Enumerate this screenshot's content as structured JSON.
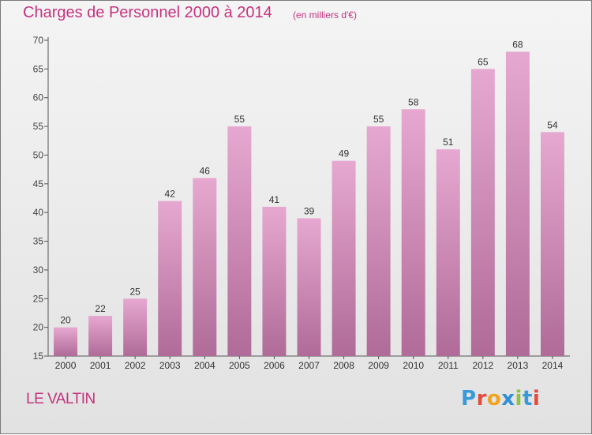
{
  "title": "Charges de Personnel 2000 à 2014",
  "subtitle": "(en milliers d'€)",
  "commune": "LE VALTIN",
  "logo": {
    "letters": [
      "P",
      "r",
      "o",
      "x",
      "i",
      "t",
      "i"
    ],
    "colors": [
      "#3a9ad9",
      "#e24c3c",
      "#f0a31e",
      "#2f8fd6",
      "#8cc63e",
      "#3a9ad9",
      "#e24c3c"
    ]
  },
  "colors": {
    "accent": "#c4337f",
    "bar_top": "#e6a8d0",
    "bar_bottom": "#b06b98",
    "axis": "#555555"
  },
  "chart_data": {
    "type": "bar",
    "categories": [
      "2000",
      "2001",
      "2002",
      "2003",
      "2004",
      "2005",
      "2006",
      "2007",
      "2008",
      "2009",
      "2010",
      "2011",
      "2012",
      "2013",
      "2014"
    ],
    "values": [
      20,
      22,
      25,
      42,
      46,
      55,
      41,
      39,
      49,
      55,
      58,
      51,
      65,
      68,
      54
    ],
    "ylim": [
      15,
      70
    ],
    "yticks": [
      15,
      20,
      25,
      30,
      35,
      40,
      45,
      50,
      55,
      60,
      65,
      70
    ],
    "grid": false,
    "data_labels": true
  }
}
